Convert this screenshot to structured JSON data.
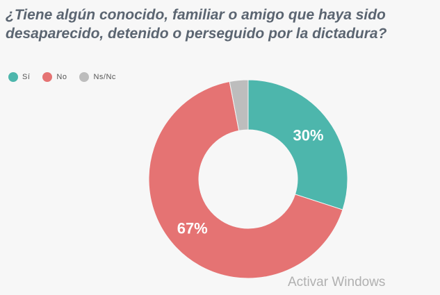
{
  "chart_data": {
    "type": "pie",
    "subtype": "donut",
    "title": "¿Tiene algún conocido, familiar o amigo que haya sido desaparecido, detenido o perseguido por la dictadura?",
    "legend_position": "top-left",
    "slices": [
      {
        "label": "Sí",
        "value": 30,
        "display": "30%",
        "color": "#4db6ac"
      },
      {
        "label": "No",
        "value": 67,
        "display": "67%",
        "color": "#e57373"
      },
      {
        "label": "Ns/Nc",
        "value": 3,
        "display": "",
        "color": "#bdbdbd"
      }
    ]
  },
  "watermark": "Activar Windows"
}
